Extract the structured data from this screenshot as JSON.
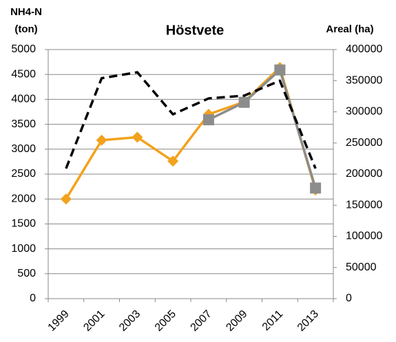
{
  "chart_data": {
    "type": "line",
    "title": "Höstvete",
    "ylabel": [
      "NH4-N",
      "(ton)"
    ],
    "y2label": "Areal (ha)",
    "categories": [
      "1999",
      "2001",
      "2003",
      "2005",
      "2007",
      "2009",
      "2011",
      "2013"
    ],
    "series": [
      {
        "color": "#f2a21c",
        "marker": "diamond",
        "values": [
          2000,
          3180,
          3240,
          2760,
          3700,
          3950,
          4640,
          2180
        ]
      },
      {
        "color": "#8c8c8c",
        "marker": "square",
        "values": [
          null,
          null,
          null,
          null,
          3590,
          3940,
          4590,
          2220
        ]
      },
      {
        "color": "#000000",
        "dashed": true,
        "axis": "y2",
        "values": [
          209000,
          354000,
          363500,
          296000,
          321500,
          326000,
          350000,
          209000
        ]
      }
    ],
    "ylim": [
      0,
      5000
    ],
    "yticks": [
      0,
      500,
      1000,
      1500,
      2000,
      2500,
      3000,
      3500,
      4000,
      4500,
      5000
    ],
    "y2lim": [
      0,
      400000
    ],
    "y2ticks": [
      0,
      50000,
      100000,
      150000,
      200000,
      250000,
      300000,
      350000,
      400000
    ],
    "grid": true
  }
}
